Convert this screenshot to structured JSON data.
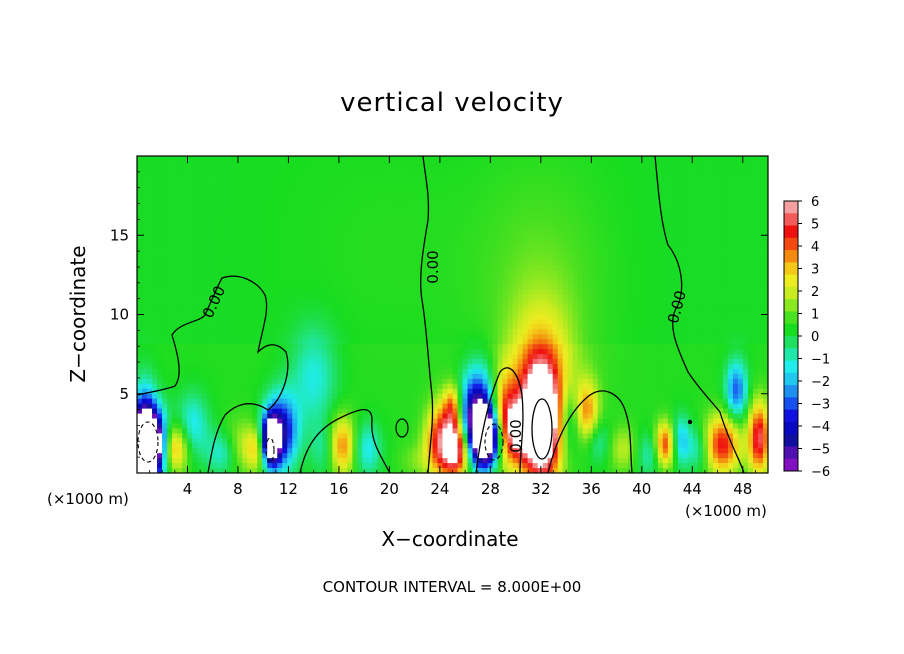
{
  "chart_data": {
    "type": "heatmap",
    "title": "vertical velocity",
    "xlabel": "X−coordinate",
    "ylabel": "Z−coordinate",
    "x_unit": "(×1000 m)",
    "x_unit_right": "(×1000 m)",
    "xlim": [
      0,
      50
    ],
    "ylim": [
      0,
      20
    ],
    "x_ticks": [
      4,
      8,
      12,
      16,
      20,
      24,
      28,
      32,
      36,
      40,
      44,
      48
    ],
    "y_ticks": [
      5,
      10,
      15
    ],
    "colorbar": {
      "ticks": [
        "6",
        "5",
        "4",
        "3",
        "2",
        "1",
        "0",
        "−1",
        "−2",
        "−3",
        "−4",
        "−5",
        "−6"
      ],
      "range": [
        -6,
        6
      ],
      "colors": [
        "#f4a0a0",
        "#f35a5a",
        "#ef1010",
        "#f24a10",
        "#f48a10",
        "#f4c818",
        "#ecec20",
        "#c8ec20",
        "#8ce820",
        "#48e020",
        "#18dc20",
        "#20e060",
        "#20e8a8",
        "#20ecec",
        "#20c8f0",
        "#2090f0",
        "#1850f0",
        "#1010e0",
        "#0808c0",
        "#1010a0",
        "#5010b0",
        "#8010c0"
      ]
    },
    "contour_labels": [
      "0.00",
      "0.00",
      "0.00",
      "0.00"
    ],
    "contour_interval_text": "CONTOUR INTERVAL = 8.000E+00",
    "anomalies": [
      {
        "x": 1.0,
        "z": 1.8,
        "value": -9,
        "sx": 1.0,
        "sz": 1.4
      },
      {
        "x": 0.6,
        "z": 1.8,
        "value": -7,
        "sx": 0.7,
        "sz": 2.2
      },
      {
        "x": 2.9,
        "z": 1.6,
        "value": 4,
        "sx": 0.8,
        "sz": 1.1
      },
      {
        "x": 4.4,
        "z": 3.0,
        "value": -2,
        "sx": 0.9,
        "sz": 1.4
      },
      {
        "x": 6.8,
        "z": 1.3,
        "value": -2,
        "sx": 0.9,
        "sz": 1.0
      },
      {
        "x": 8.0,
        "z": 1.7,
        "value": 1.5,
        "sx": 1.0,
        "sz": 1.2
      },
      {
        "x": 9.6,
        "z": 1.5,
        "value": 2.5,
        "sx": 0.7,
        "sz": 1.0
      },
      {
        "x": 10.6,
        "z": 2.0,
        "value": -8,
        "sx": 0.5,
        "sz": 1.1
      },
      {
        "x": 11.4,
        "z": 2.6,
        "value": -5,
        "sx": 0.9,
        "sz": 1.6
      },
      {
        "x": 14.0,
        "z": 6.0,
        "value": -1.8,
        "sx": 1.3,
        "sz": 2.2
      },
      {
        "x": 15.0,
        "z": 1.5,
        "value": -1.5,
        "sx": 0.8,
        "sz": 1.2
      },
      {
        "x": 16.2,
        "z": 1.7,
        "value": 3.8,
        "sx": 0.8,
        "sz": 1.3
      },
      {
        "x": 18.2,
        "z": 1.5,
        "value": -2,
        "sx": 0.8,
        "sz": 1.2
      },
      {
        "x": 22.2,
        "z": 0.8,
        "value": 0.8,
        "sx": 1.0,
        "sz": 0.8
      },
      {
        "x": 24.2,
        "z": 2.0,
        "value": 5,
        "sx": 0.9,
        "sz": 1.6
      },
      {
        "x": 25.4,
        "z": 1.5,
        "value": 5,
        "sx": 0.7,
        "sz": 1.2
      },
      {
        "x": 25.0,
        "z": 4.2,
        "value": 3,
        "sx": 0.5,
        "sz": 1.0
      },
      {
        "x": 26.5,
        "z": 3.0,
        "value": -2.5,
        "sx": 0.8,
        "sz": 1.6
      },
      {
        "x": 27.2,
        "z": 4.3,
        "value": -4.5,
        "sx": 1.0,
        "sz": 1.8
      },
      {
        "x": 27.7,
        "z": 2.2,
        "value": -10,
        "sx": 0.8,
        "sz": 1.3
      },
      {
        "x": 29.0,
        "z": 3.2,
        "value": 5,
        "sx": 0.9,
        "sz": 2.0
      },
      {
        "x": 30.2,
        "z": 2.5,
        "value": 2.5,
        "sx": 0.6,
        "sz": 1.2
      },
      {
        "x": 32.0,
        "z": 3.0,
        "value": 9,
        "sx": 1.1,
        "sz": 2.5
      },
      {
        "x": 32.0,
        "z": 6.5,
        "value": 2.5,
        "sx": 1.8,
        "sz": 3.0
      },
      {
        "x": 32.0,
        "z": 12.0,
        "value": 0.8,
        "sx": 3.5,
        "sz": 5.0
      },
      {
        "x": 34.3,
        "z": 3.3,
        "value": -2.2,
        "sx": 0.8,
        "sz": 1.5
      },
      {
        "x": 35.6,
        "z": 3.8,
        "value": 3.5,
        "sx": 0.7,
        "sz": 1.4
      },
      {
        "x": 36.5,
        "z": 2.0,
        "value": -1.5,
        "sx": 0.7,
        "sz": 1.0
      },
      {
        "x": 38.5,
        "z": 1.5,
        "value": 1.5,
        "sx": 0.8,
        "sz": 1.0
      },
      {
        "x": 40.6,
        "z": 1.2,
        "value": -1.5,
        "sx": 0.7,
        "sz": 1.0
      },
      {
        "x": 41.9,
        "z": 1.8,
        "value": 4.5,
        "sx": 0.6,
        "sz": 1.0
      },
      {
        "x": 43.0,
        "z": 2.0,
        "value": -2.8,
        "sx": 0.6,
        "sz": 1.1
      },
      {
        "x": 44.5,
        "z": 1.5,
        "value": -1.5,
        "sx": 0.6,
        "sz": 1.0
      },
      {
        "x": 46.4,
        "z": 1.8,
        "value": 4.5,
        "sx": 1.0,
        "sz": 1.3
      },
      {
        "x": 47.5,
        "z": 5.2,
        "value": -3.5,
        "sx": 0.6,
        "sz": 1.3
      },
      {
        "x": 49.3,
        "z": 2.2,
        "value": 5,
        "sx": 0.6,
        "sz": 1.6
      },
      {
        "x": 20.0,
        "z": 14.0,
        "value": 0.2,
        "sx": 6.0,
        "sz": 5.0
      }
    ]
  }
}
